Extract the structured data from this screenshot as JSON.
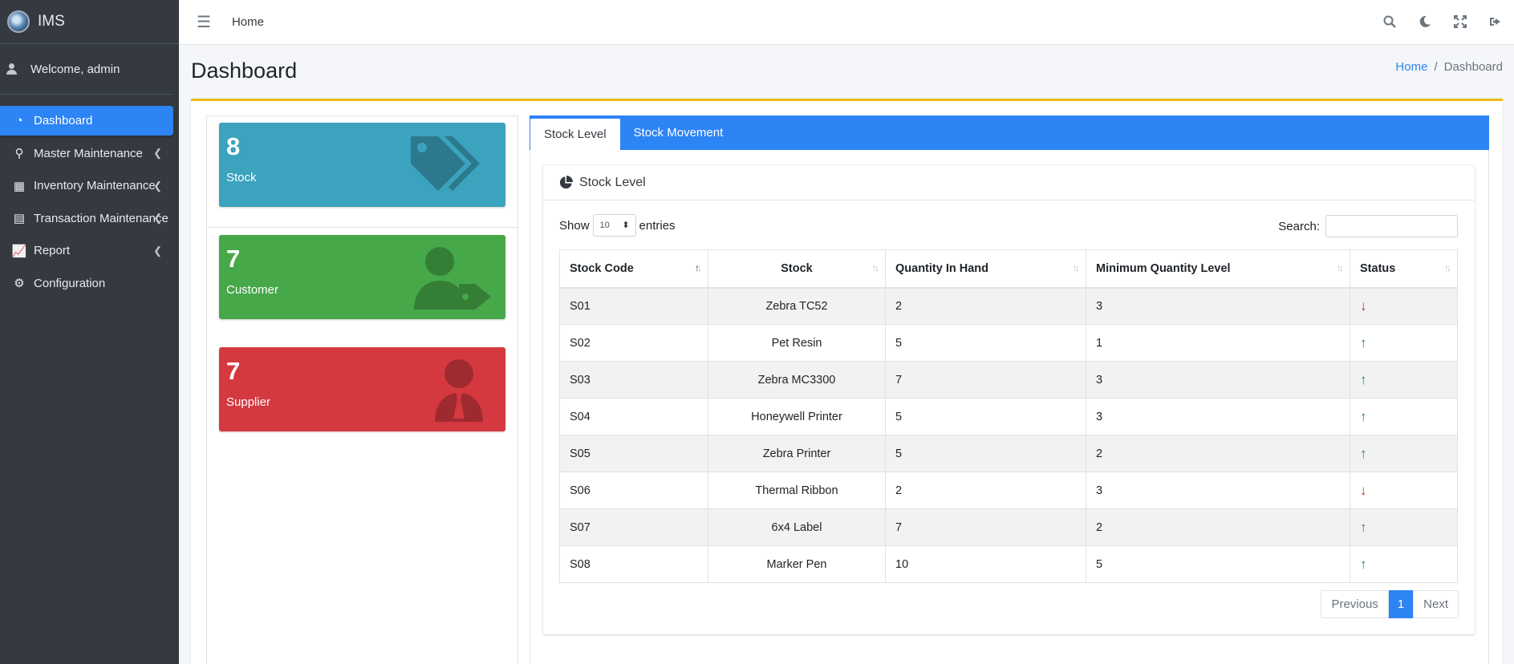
{
  "brand": {
    "name": "IMS"
  },
  "user": {
    "welcome": "Welcome, admin"
  },
  "sidebar": {
    "items": [
      {
        "label": "Dashboard",
        "icon": "tachometer-icon",
        "glyph": "◔",
        "active": true,
        "caret": false
      },
      {
        "label": "Master Maintenance",
        "icon": "paperclip-icon",
        "glyph": "⚲",
        "active": false,
        "caret": true
      },
      {
        "label": "Inventory Maintenance",
        "icon": "boxes-icon",
        "glyph": "▦",
        "active": false,
        "caret": true
      },
      {
        "label": "Transaction Maintenance",
        "icon": "dolly-icon",
        "glyph": "▤",
        "active": false,
        "caret": true
      },
      {
        "label": "Report",
        "icon": "chart-line-icon",
        "glyph": "📈",
        "active": false,
        "caret": true
      },
      {
        "label": "Configuration",
        "icon": "cogs-icon",
        "glyph": "⚙",
        "active": false,
        "caret": false
      }
    ]
  },
  "topbar": {
    "home": "Home"
  },
  "header": {
    "title": "Dashboard",
    "breadcrumb": {
      "home": "Home",
      "sep": "/",
      "current": "Dashboard"
    }
  },
  "boxes": {
    "stock": {
      "count": "8",
      "label": "Stock",
      "color": "#3ba3bd",
      "icon": "tags-icon"
    },
    "customer": {
      "count": "7",
      "label": "Customer",
      "color": "#46a848",
      "icon": "user-tag-icon"
    },
    "supplier": {
      "count": "7",
      "label": "Supplier",
      "color": "#d4393f",
      "icon": "user-tie-icon"
    }
  },
  "tabs": [
    {
      "label": "Stock Level",
      "active": true
    },
    {
      "label": "Stock Movement",
      "active": false
    }
  ],
  "panel": {
    "title": "Stock Level"
  },
  "table_controls": {
    "show": "Show",
    "entries_value": "10",
    "entries": "entries",
    "search_label": "Search:"
  },
  "table": {
    "headers": [
      "Stock Code",
      "Stock",
      "Quantity In Hand",
      "Minimum Quantity Level",
      "Status"
    ],
    "rows": [
      {
        "code": "S01",
        "stock": "Zebra TC52",
        "qty": "2",
        "min": "3",
        "status": "down"
      },
      {
        "code": "S02",
        "stock": "Pet Resin",
        "qty": "5",
        "min": "1",
        "status": "up"
      },
      {
        "code": "S03",
        "stock": "Zebra MC3300",
        "qty": "7",
        "min": "3",
        "status": "up"
      },
      {
        "code": "S04",
        "stock": "Honeywell Printer",
        "qty": "5",
        "min": "3",
        "status": "up"
      },
      {
        "code": "S05",
        "stock": "Zebra Printer",
        "qty": "5",
        "min": "2",
        "status": "up"
      },
      {
        "code": "S06",
        "stock": "Thermal Ribbon",
        "qty": "2",
        "min": "3",
        "status": "down"
      },
      {
        "code": "S07",
        "stock": "6x4 Label",
        "qty": "7",
        "min": "2",
        "status": "up"
      },
      {
        "code": "S08",
        "stock": "Marker Pen",
        "qty": "10",
        "min": "5",
        "status": "up"
      }
    ]
  },
  "pagination": {
    "previous": "Previous",
    "current": "1",
    "next": "Next"
  },
  "colors": {
    "primary": "#2d84f4",
    "sidebar": "#343a40",
    "warning_border": "#f0ba1b",
    "up": "#2a8a2a",
    "down": "#d4281f"
  }
}
